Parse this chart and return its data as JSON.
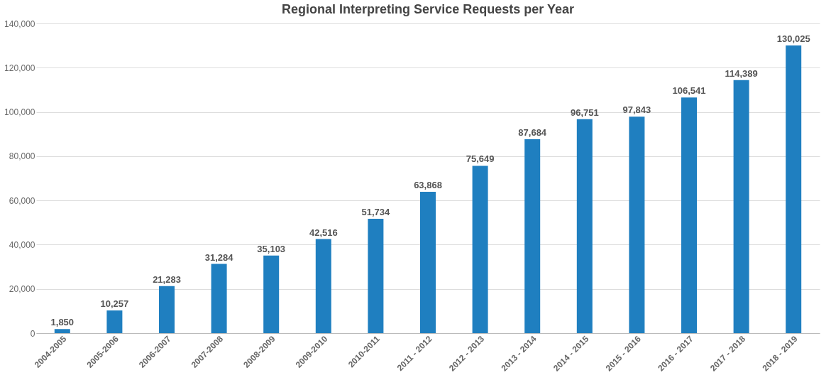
{
  "chart_data": {
    "type": "bar",
    "title": "Regional Interpreting Service Requests per Year",
    "categories": [
      "2004-2005",
      "2005-2006",
      "2006-2007",
      "2007-2008",
      "2008-2009",
      "2009-2010",
      "2010-2011",
      "2011 - 2012",
      "2012 - 2013",
      "2013 - 2014",
      "2014 - 2015",
      "2015 - 2016",
      "2016 - 2017",
      "2017 - 2018",
      "2018 - 2019"
    ],
    "values": [
      1850,
      10257,
      21283,
      31284,
      35103,
      42516,
      51734,
      63868,
      75649,
      87684,
      96751,
      97843,
      106541,
      114389,
      130025
    ],
    "color": "#1f7fc0",
    "ylim": [
      0,
      140000
    ],
    "yticks": [
      {
        "value": 0,
        "label": "0"
      },
      {
        "value": 20000,
        "label": "20,000"
      },
      {
        "value": 40000,
        "label": "40,000"
      },
      {
        "value": 60000,
        "label": "60,000"
      },
      {
        "value": 80000,
        "label": "80,000"
      },
      {
        "value": 100000,
        "label": "100,000"
      },
      {
        "value": 120000,
        "label": "120,000"
      },
      {
        "value": 140000,
        "label": "140,000"
      }
    ],
    "grid": "y",
    "value_labels": [
      "1,850",
      "10,257",
      "21,283",
      "31,284",
      "35,103",
      "42,516",
      "51,734",
      "63,868",
      "75,649",
      "87,684",
      "96,751",
      "97,843",
      "106,541",
      "114,389",
      "130,025"
    ]
  }
}
